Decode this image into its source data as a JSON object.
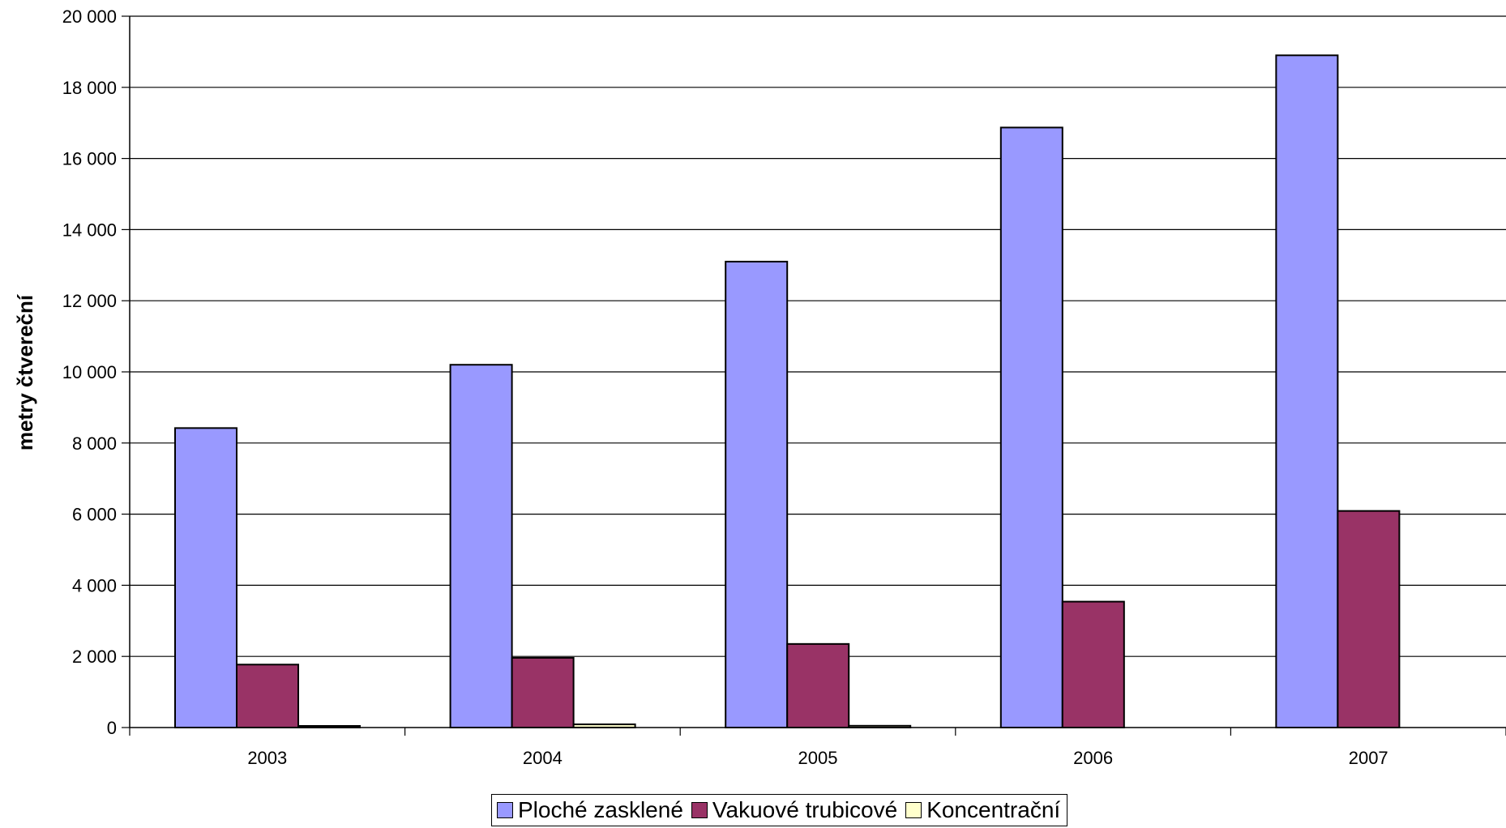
{
  "chart_data": {
    "type": "bar",
    "title": "",
    "xlabel": "",
    "ylabel": "metry čtvereční",
    "categories": [
      "2003",
      "2004",
      "2005",
      "2006",
      "2007"
    ],
    "ylim": [
      0,
      20000
    ],
    "yticks": [
      0,
      2000,
      4000,
      6000,
      8000,
      10000,
      12000,
      14000,
      16000,
      18000,
      20000
    ],
    "ytick_labels": [
      "0",
      "2 000",
      "4 000",
      "6 000",
      "8 000",
      "10 000",
      "12 000",
      "14 000",
      "16 000",
      "18 000",
      "20 000"
    ],
    "grid": true,
    "legend_position": "bottom",
    "series": [
      {
        "name": "Ploché zasklené",
        "color": "#9999FF",
        "values": [
          8420,
          10200,
          13100,
          16870,
          18900
        ]
      },
      {
        "name": "Vakuové trubicové",
        "color": "#993366",
        "values": [
          1770,
          1960,
          2350,
          3540,
          6090
        ]
      },
      {
        "name": "Koncentrační",
        "color": "#FFFFCC",
        "values": [
          20,
          90,
          50,
          0,
          0
        ]
      }
    ]
  }
}
